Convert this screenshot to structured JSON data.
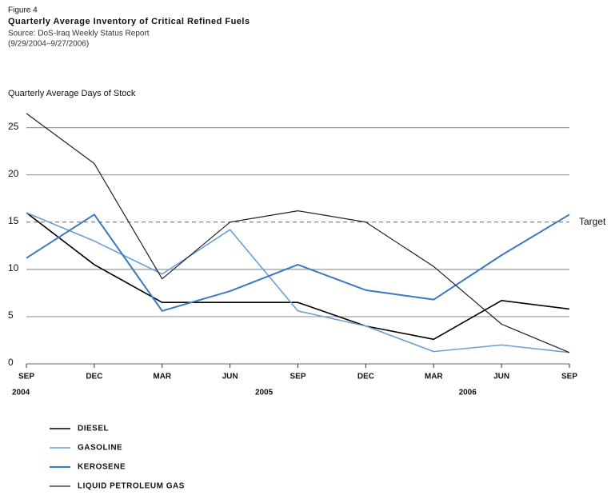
{
  "chart_data": {
    "type": "line",
    "figure_label": "Figure 4",
    "title": "Quarterly Average Inventory of Critical Refined Fuels",
    "source": "Source: DoS-Iraq Weekly Status Report",
    "source_range": "(9/29/2004–9/27/2006)",
    "ylabel": "Quarterly Average Days of Stock",
    "categories": [
      "SEP",
      "DEC",
      "MAR",
      "JUN",
      "SEP",
      "DEC",
      "MAR",
      "JUN",
      "SEP"
    ],
    "years": [
      {
        "label": "2004",
        "at": 0
      },
      {
        "label": "2005",
        "at": 3.5
      },
      {
        "label": "2006",
        "at": 6.5
      }
    ],
    "series": [
      {
        "name": "DIESEL",
        "color": "#000000",
        "width": 1.6,
        "values": [
          16,
          10.5,
          6.5,
          6.5,
          6.5,
          4,
          2.6,
          6.7,
          5.8
        ]
      },
      {
        "name": "GASOLINE",
        "color": "#6a9fd4",
        "width": 1.6,
        "values": [
          16,
          13,
          9.5,
          14.2,
          5.6,
          4,
          1.3,
          2,
          1.2
        ]
      },
      {
        "name": "KEROSENE",
        "color": "#3a78c2",
        "width": 2,
        "values": [
          11.2,
          15.8,
          5.6,
          7.7,
          10.5,
          7.8,
          6.8,
          11.5,
          15.8
        ]
      },
      {
        "name": "LIQUID PETROLEUM GAS",
        "color": "#222222",
        "width": 1.2,
        "values": [
          26.5,
          21.2,
          9,
          15,
          16.2,
          15,
          10.3,
          4.2,
          1.2
        ]
      }
    ],
    "target": {
      "value": 15,
      "label": "Target"
    },
    "ylim": [
      0,
      27
    ],
    "yticks": [
      0,
      5,
      10,
      15,
      20,
      25
    ],
    "grid": true
  }
}
